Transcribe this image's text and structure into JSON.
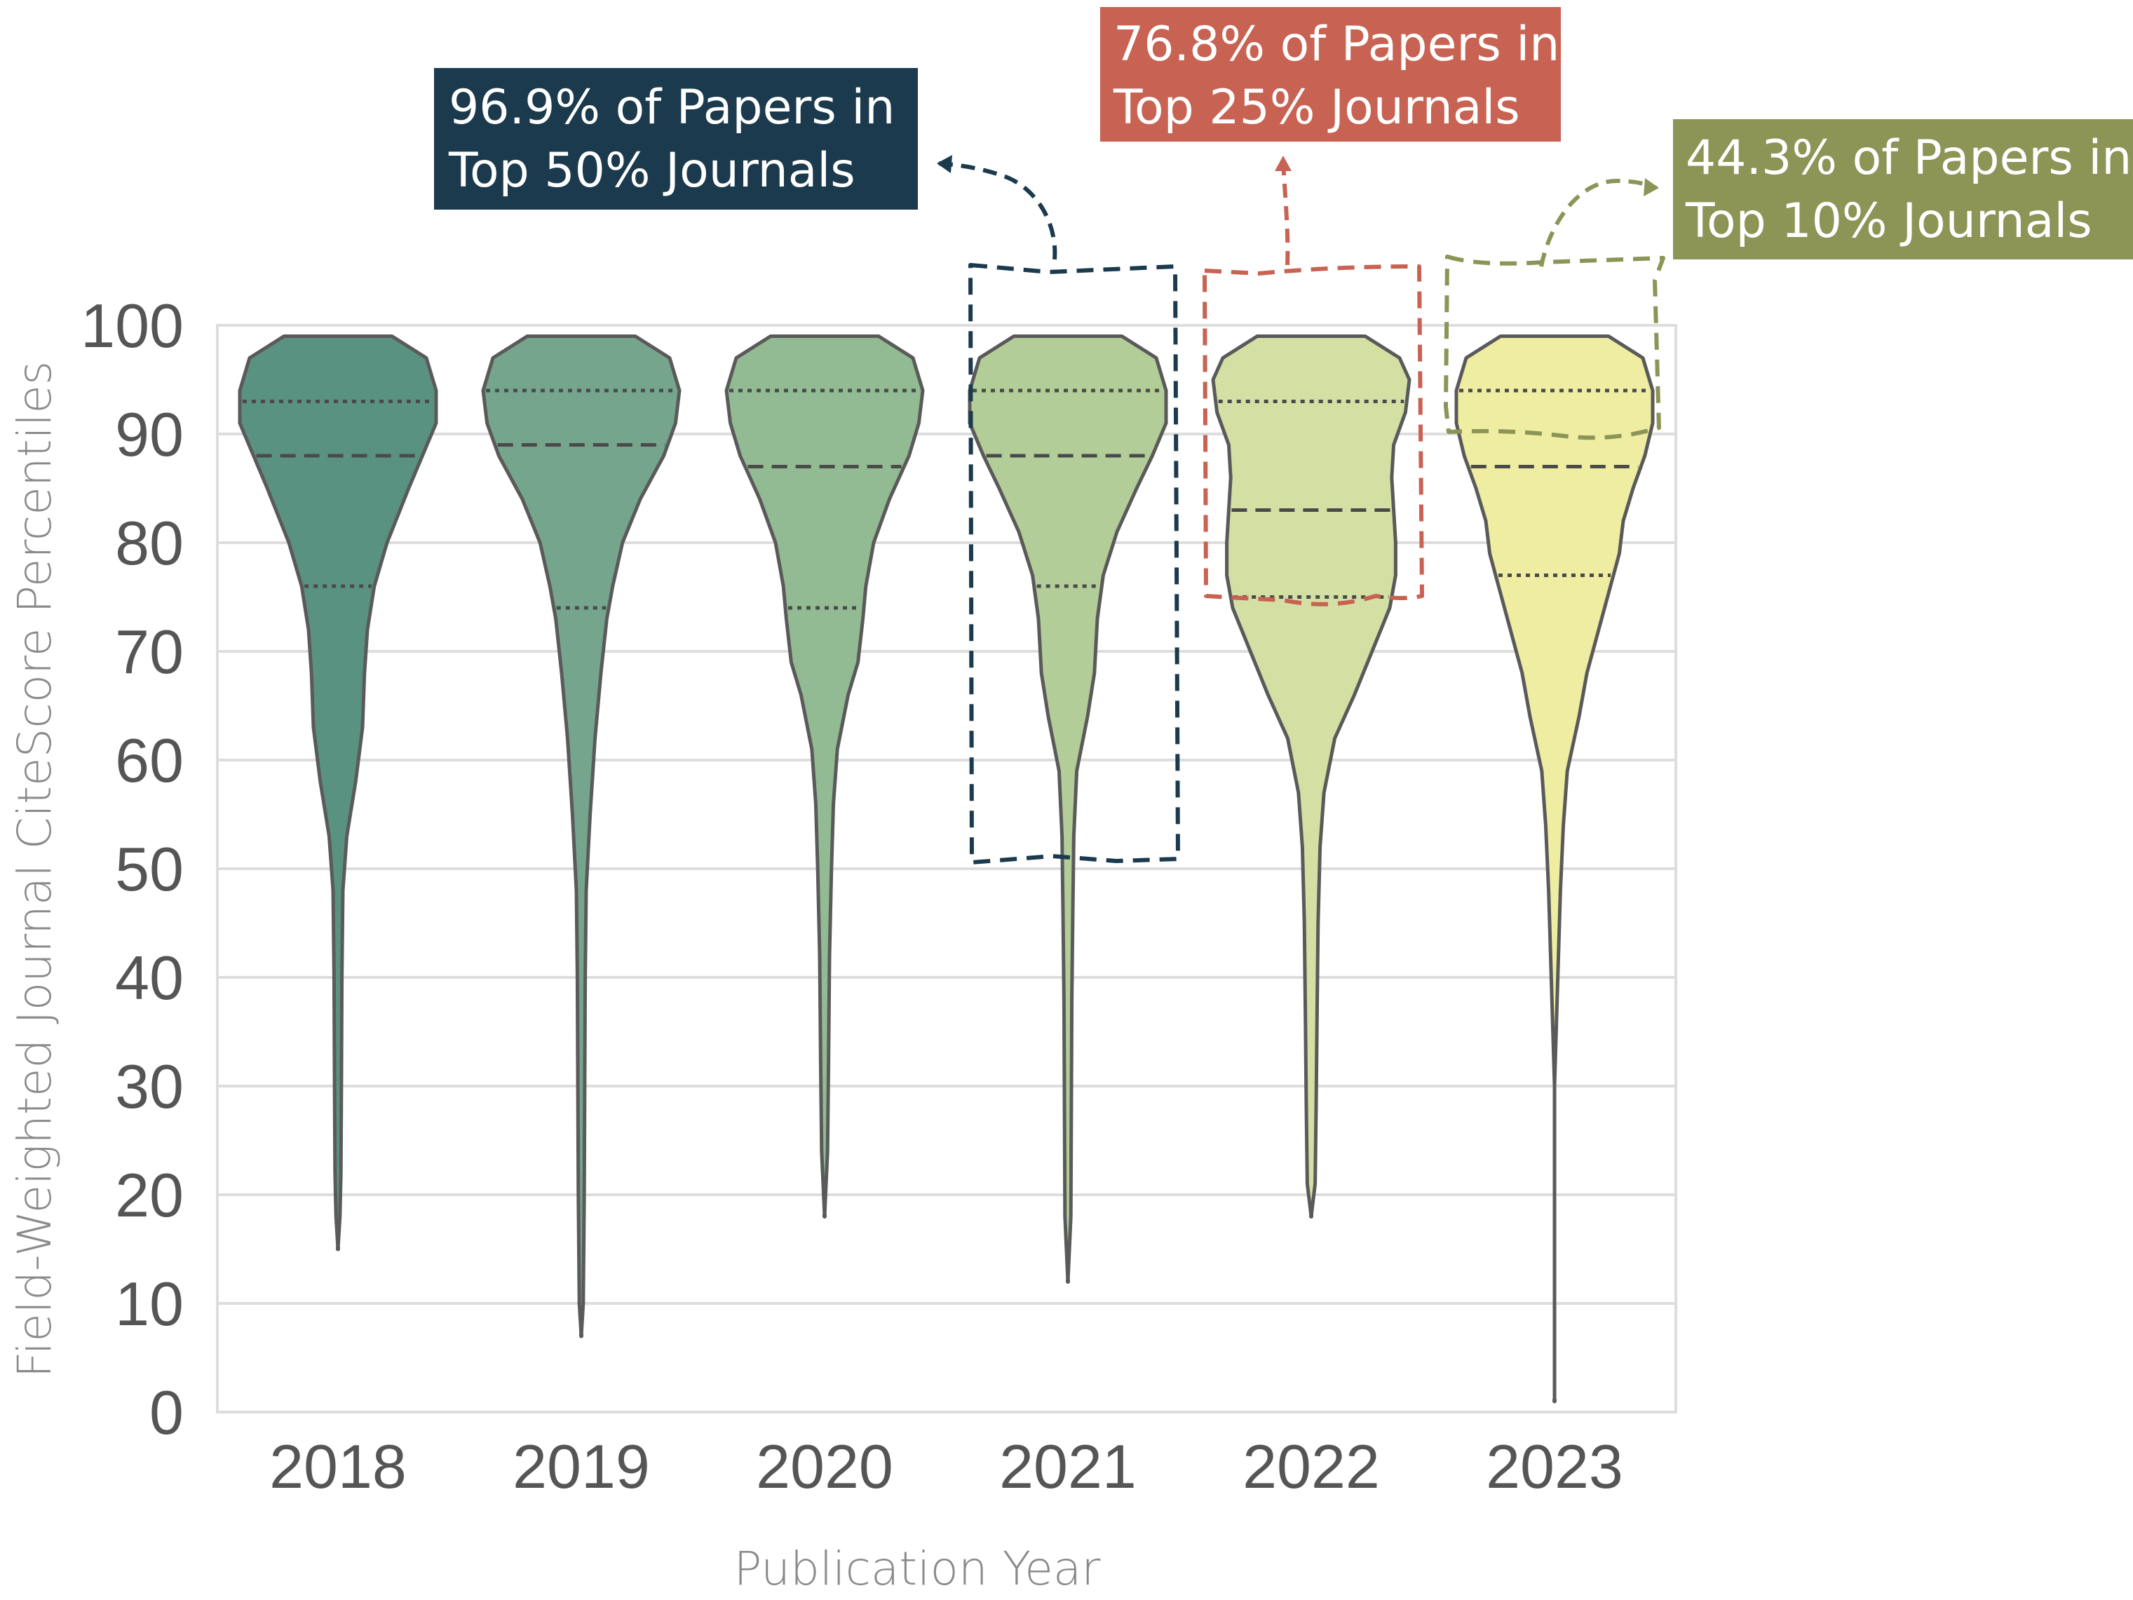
{
  "chart_data": {
    "type": "violin",
    "title": "",
    "xlabel": "Publication Year",
    "ylabel": "Field-Weighted Journal CiteScore Percentiles",
    "ylim": [
      0,
      100
    ],
    "yticks": [
      0,
      10,
      20,
      30,
      40,
      50,
      60,
      70,
      80,
      90,
      100
    ],
    "grid": true,
    "categories": [
      "2018",
      "2019",
      "2020",
      "2021",
      "2022",
      "2023"
    ],
    "series": [
      {
        "category": "2018",
        "color": "#5a9282",
        "min": 15,
        "max": 99,
        "q1": 76,
        "median": 88,
        "q3": 93,
        "profile": [
          [
            99,
            0.55
          ],
          [
            97,
            0.9
          ],
          [
            94,
            1.0
          ],
          [
            91,
            1.0
          ],
          [
            88,
            0.86
          ],
          [
            85,
            0.72
          ],
          [
            80,
            0.5
          ],
          [
            76,
            0.37
          ],
          [
            72,
            0.3
          ],
          [
            68,
            0.27
          ],
          [
            63,
            0.25
          ],
          [
            58,
            0.18
          ],
          [
            53,
            0.09
          ],
          [
            48,
            0.05
          ],
          [
            40,
            0.04
          ],
          [
            30,
            0.035
          ],
          [
            22,
            0.03
          ],
          [
            18,
            0.02
          ],
          [
            15,
            0.0
          ]
        ]
      },
      {
        "category": "2019",
        "color": "#76a58d",
        "min": 7,
        "max": 99,
        "q1": 74,
        "median": 89,
        "q3": 94,
        "profile": [
          [
            99,
            0.55
          ],
          [
            97,
            0.9
          ],
          [
            94,
            1.0
          ],
          [
            91,
            0.96
          ],
          [
            88,
            0.84
          ],
          [
            84,
            0.6
          ],
          [
            80,
            0.42
          ],
          [
            76,
            0.32
          ],
          [
            73,
            0.26
          ],
          [
            68,
            0.2
          ],
          [
            62,
            0.14
          ],
          [
            55,
            0.09
          ],
          [
            48,
            0.05
          ],
          [
            40,
            0.04
          ],
          [
            30,
            0.035
          ],
          [
            20,
            0.03
          ],
          [
            10,
            0.02
          ],
          [
            7,
            0.0
          ]
        ]
      },
      {
        "category": "2020",
        "color": "#93bb93",
        "min": 18,
        "max": 99,
        "q1": 74,
        "median": 87,
        "q3": 94,
        "profile": [
          [
            99,
            0.55
          ],
          [
            97,
            0.9
          ],
          [
            94,
            1.0
          ],
          [
            91,
            0.96
          ],
          [
            88,
            0.86
          ],
          [
            84,
            0.66
          ],
          [
            80,
            0.5
          ],
          [
            76,
            0.42
          ],
          [
            73,
            0.39
          ],
          [
            69,
            0.34
          ],
          [
            66,
            0.24
          ],
          [
            61,
            0.13
          ],
          [
            56,
            0.09
          ],
          [
            50,
            0.07
          ],
          [
            42,
            0.05
          ],
          [
            32,
            0.04
          ],
          [
            24,
            0.03
          ],
          [
            18,
            0.0
          ]
        ]
      },
      {
        "category": "2021",
        "color": "#b3cd98",
        "min": 12,
        "max": 99,
        "q1": 76,
        "median": 88,
        "q3": 94,
        "profile": [
          [
            99,
            0.55
          ],
          [
            97,
            0.9
          ],
          [
            94,
            1.0
          ],
          [
            91,
            1.0
          ],
          [
            88,
            0.86
          ],
          [
            85,
            0.7
          ],
          [
            81,
            0.5
          ],
          [
            77,
            0.36
          ],
          [
            73,
            0.3
          ],
          [
            68,
            0.27
          ],
          [
            64,
            0.2
          ],
          [
            59,
            0.09
          ],
          [
            53,
            0.06
          ],
          [
            46,
            0.05
          ],
          [
            38,
            0.04
          ],
          [
            28,
            0.035
          ],
          [
            18,
            0.03
          ],
          [
            12,
            0.0
          ]
        ]
      },
      {
        "category": "2022",
        "color": "#d4dfa3",
        "min": 18,
        "max": 99,
        "q1": 75,
        "median": 83,
        "q3": 93,
        "profile": [
          [
            99,
            0.55
          ],
          [
            97,
            0.9
          ],
          [
            95,
            1.0
          ],
          [
            92,
            0.96
          ],
          [
            89,
            0.84
          ],
          [
            86,
            0.82
          ],
          [
            83,
            0.84
          ],
          [
            80,
            0.86
          ],
          [
            77,
            0.86
          ],
          [
            74,
            0.8
          ],
          [
            70,
            0.62
          ],
          [
            66,
            0.44
          ],
          [
            62,
            0.24
          ],
          [
            57,
            0.13
          ],
          [
            52,
            0.09
          ],
          [
            45,
            0.07
          ],
          [
            37,
            0.06
          ],
          [
            28,
            0.05
          ],
          [
            21,
            0.04
          ],
          [
            18,
            0.0
          ]
        ]
      },
      {
        "category": "2023",
        "color": "#efeda1",
        "min": 1,
        "max": 99,
        "q1": 77,
        "median": 87,
        "q3": 94,
        "profile": [
          [
            99,
            0.55
          ],
          [
            97,
            0.9
          ],
          [
            94,
            1.0
          ],
          [
            91,
            1.0
          ],
          [
            88,
            0.92
          ],
          [
            85,
            0.8
          ],
          [
            82,
            0.7
          ],
          [
            79,
            0.66
          ],
          [
            76,
            0.57
          ],
          [
            72,
            0.45
          ],
          [
            68,
            0.33
          ],
          [
            64,
            0.25
          ],
          [
            59,
            0.13
          ],
          [
            54,
            0.09
          ],
          [
            48,
            0.06
          ],
          [
            42,
            0.04
          ],
          [
            36,
            0.02
          ],
          [
            30,
            0.0
          ],
          [
            1,
            0.0
          ]
        ]
      }
    ],
    "annotations": [
      {
        "text_lines": [
          "96.9% of Papers in",
          "Top 50% Journals"
        ],
        "color": "#1b3a4d",
        "category": "2021",
        "y_range": [
          51,
          105
        ]
      },
      {
        "text_lines": [
          "76.8% of Papers in",
          "Top 25% Journals"
        ],
        "color": "#c86252",
        "category": "2022",
        "y_range": [
          75,
          105
        ]
      },
      {
        "text_lines": [
          "44.3% of Papers in",
          "Top 10% Journals"
        ],
        "color": "#8c9456",
        "category": "2023",
        "y_range": [
          90,
          105
        ]
      }
    ]
  }
}
